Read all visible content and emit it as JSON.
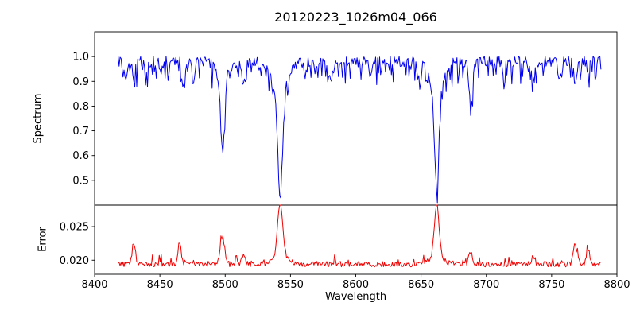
{
  "chart_data": {
    "type": "line",
    "title": "20120223_1026m04_066",
    "xlabel": "Wavelength",
    "xlim": [
      8400,
      8800
    ],
    "xticks": [
      {
        "v": 8400,
        "label": "8400"
      },
      {
        "v": 8450,
        "label": "8450"
      },
      {
        "v": 8500,
        "label": "8500"
      },
      {
        "v": 8550,
        "label": "8550"
      },
      {
        "v": 8600,
        "label": "8600"
      },
      {
        "v": 8650,
        "label": "8650"
      },
      {
        "v": 8700,
        "label": "8700"
      },
      {
        "v": 8750,
        "label": "8750"
      },
      {
        "v": 8800,
        "label": "8800"
      }
    ],
    "x_data_start": 8418,
    "x_data_end": 8788,
    "x_step": 0.75,
    "noise_seed": 12345,
    "legend": "off",
    "grid": "off",
    "panels": [
      {
        "ylabel": "Spectrum",
        "ylim": [
          0.4,
          1.1
        ],
        "yticks": [
          {
            "v": 0.5,
            "label": "0.5"
          },
          {
            "v": 0.6,
            "label": "0.6"
          },
          {
            "v": 0.7,
            "label": "0.7"
          },
          {
            "v": 0.8,
            "label": "0.8"
          },
          {
            "v": 0.9,
            "label": "0.9"
          },
          {
            "v": 1.0,
            "label": "1.0"
          }
        ],
        "line_color": "#0000ee",
        "continuum": 0.98,
        "noise_amp": 0.022,
        "dip_prob": 0.3,
        "dip_max": 0.08,
        "absorption_lines": [
          {
            "center": 8424,
            "depth": 0.05,
            "width": 0.9
          },
          {
            "center": 8430,
            "depth": 0.08,
            "width": 1.0
          },
          {
            "center": 8440,
            "depth": 0.06,
            "width": 0.9
          },
          {
            "center": 8451,
            "depth": 0.05,
            "width": 0.9
          },
          {
            "center": 8468,
            "depth": 0.1,
            "width": 1.1
          },
          {
            "center": 8476,
            "depth": 0.07,
            "width": 0.9
          },
          {
            "center": 8498,
            "depth": 0.28,
            "width": 1.4
          },
          {
            "center": 8498,
            "depth": 0.08,
            "width": 4.0
          },
          {
            "center": 8514,
            "depth": 0.09,
            "width": 1.1
          },
          {
            "center": 8542,
            "depth": 0.4,
            "width": 1.7
          },
          {
            "center": 8542,
            "depth": 0.13,
            "width": 6.0
          },
          {
            "center": 8582,
            "depth": 0.06,
            "width": 0.9
          },
          {
            "center": 8611,
            "depth": 0.06,
            "width": 0.9
          },
          {
            "center": 8648,
            "depth": 0.06,
            "width": 0.9
          },
          {
            "center": 8662,
            "depth": 0.39,
            "width": 1.6
          },
          {
            "center": 8662,
            "depth": 0.13,
            "width": 5.0
          },
          {
            "center": 8688,
            "depth": 0.16,
            "width": 1.3
          },
          {
            "center": 8713,
            "depth": 0.06,
            "width": 0.9
          },
          {
            "center": 8736,
            "depth": 0.08,
            "width": 1.1
          },
          {
            "center": 8757,
            "depth": 0.06,
            "width": 0.9
          },
          {
            "center": 8768,
            "depth": 0.08,
            "width": 1.1
          },
          {
            "center": 8778,
            "depth": 0.06,
            "width": 0.9
          }
        ]
      },
      {
        "ylabel": "Error",
        "ylim": [
          0.0179,
          0.0282
        ],
        "yticks": [
          {
            "v": 0.02,
            "label": "0.020"
          },
          {
            "v": 0.025,
            "label": "0.025"
          }
        ],
        "line_color": "#ee0000",
        "baseline": 0.0194,
        "noise_amp": 0.0004,
        "spike_prob": 0.1,
        "spike_max": 0.0012,
        "error_peaks": [
          {
            "center": 8430,
            "height": 0.0032,
            "width": 1.3
          },
          {
            "center": 8465,
            "height": 0.0033,
            "width": 1.2
          },
          {
            "center": 8498,
            "height": 0.004,
            "width": 1.6
          },
          {
            "center": 8514,
            "height": 0.0012,
            "width": 1.3
          },
          {
            "center": 8542,
            "height": 0.008,
            "width": 1.9
          },
          {
            "center": 8542,
            "height": 0.0012,
            "width": 6.0
          },
          {
            "center": 8662,
            "height": 0.0082,
            "width": 1.7
          },
          {
            "center": 8662,
            "height": 0.0012,
            "width": 5.0
          },
          {
            "center": 8688,
            "height": 0.0018,
            "width": 1.4
          },
          {
            "center": 8736,
            "height": 0.0012,
            "width": 1.3
          },
          {
            "center": 8768,
            "height": 0.0026,
            "width": 1.6
          },
          {
            "center": 8778,
            "height": 0.0022,
            "width": 1.3
          }
        ]
      }
    ]
  }
}
